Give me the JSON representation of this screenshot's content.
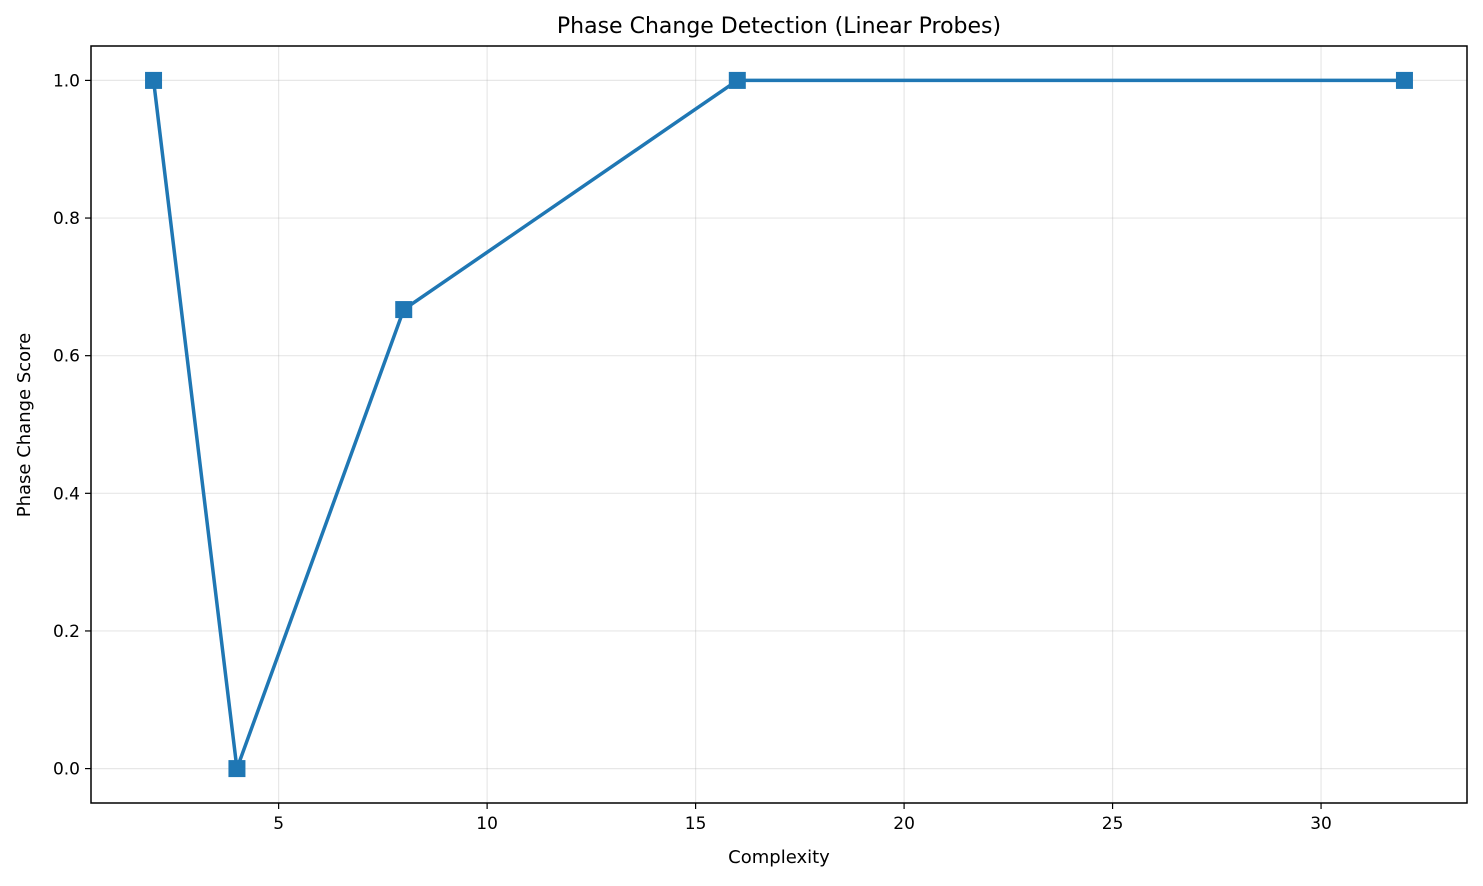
{
  "chart_data": {
    "type": "line",
    "title": "Phase Change Detection (Linear Probes)",
    "xlabel": "Complexity",
    "ylabel": "Phase Change Score",
    "xlim": [
      0.5,
      33.5
    ],
    "ylim": [
      -0.05,
      1.05
    ],
    "x_ticks": [
      5,
      10,
      15,
      20,
      25,
      30
    ],
    "x_tick_labels": [
      "5",
      "10",
      "15",
      "20",
      "25",
      "30"
    ],
    "y_ticks": [
      0.0,
      0.2,
      0.4,
      0.6,
      0.8,
      1.0
    ],
    "y_tick_labels": [
      "0.0",
      "0.2",
      "0.4",
      "0.6",
      "0.8",
      "1.0"
    ],
    "grid": true,
    "series": [
      {
        "color": "#1f77b4",
        "marker": "square",
        "x": [
          2,
          4,
          8,
          16,
          32
        ],
        "y": [
          1.0,
          0.0,
          0.667,
          1.0,
          1.0
        ]
      }
    ]
  }
}
